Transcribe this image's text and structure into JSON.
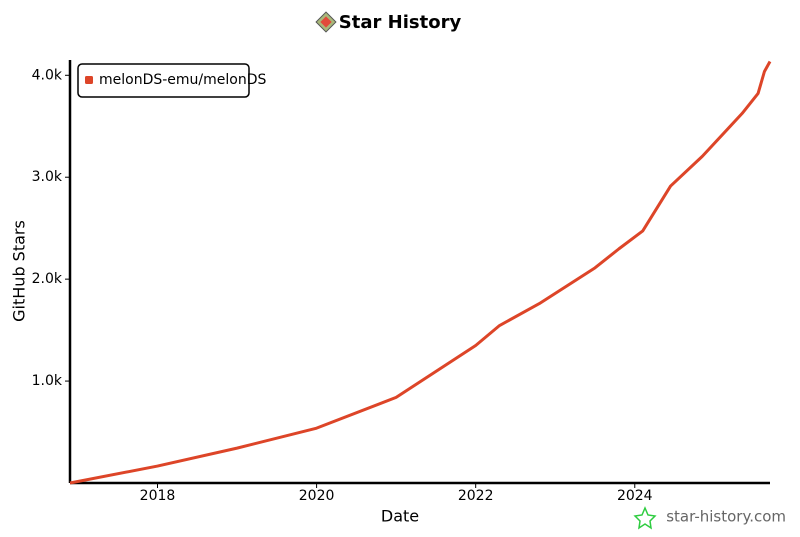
{
  "chart_data": {
    "type": "line",
    "title": "Star History",
    "x_label": "Date",
    "y_label": "GitHub Stars",
    "x": [
      2016.9,
      2018,
      2019,
      2020,
      2021,
      2022,
      2022.3,
      2022.8,
      2023.5,
      2023.8,
      2024.1,
      2024.45,
      2024.85,
      2025.35,
      2025.55,
      2025.63,
      2025.7
    ],
    "series": [
      {
        "name": "melonDS-emu/melonDS",
        "color": "#dd4528",
        "values": [
          0,
          166,
          342,
          538,
          840,
          1349,
          1545,
          1760,
          2111,
          2297,
          2473,
          2913,
          3206,
          3626,
          3822,
          4037,
          4135
        ]
      }
    ],
    "xlim": [
      2016.9,
      2025.7
    ],
    "xticks": [
      2018,
      2020,
      2022,
      2024
    ],
    "ylim": [
      0,
      4150
    ],
    "yticks": [
      {
        "value": 1000,
        "label": "1.0k"
      },
      {
        "value": 2000,
        "label": "2.0k"
      },
      {
        "value": 3000,
        "label": "3.0k"
      },
      {
        "value": 4000,
        "label": "4.0k"
      }
    ],
    "legend": "top-left",
    "watermark": "star-history.com"
  }
}
